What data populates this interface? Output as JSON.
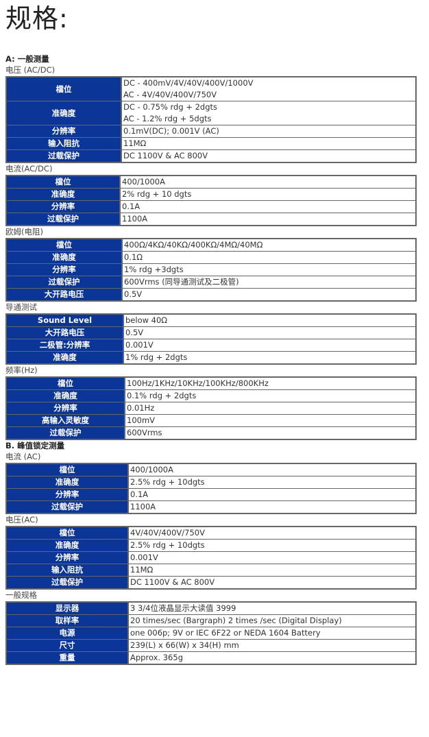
{
  "title": "规格:",
  "colors": {
    "label_bg": "#0b3597",
    "border": "#666666"
  },
  "sections": [
    {
      "group": "A: 一般测量",
      "sub": "电压 (AC/DC)",
      "rows": [
        {
          "k": "檔位",
          "v": [
            "DC - 400mV/4V/40V/400V/1000V",
            "AC - 4V/40V/400V/750V"
          ]
        },
        {
          "k": "准确度",
          "v": [
            "DC - 0.75% rdg + 2dgts",
            "AC - 1.2% rdg + 5dgts"
          ]
        },
        {
          "k": "分辨率",
          "v": [
            "0.1mV(DC); 0.001V (AC)"
          ]
        },
        {
          "k": "输入阻抗",
          "v": [
            "11MΩ"
          ]
        },
        {
          "k": "过载保护",
          "v": [
            "DC 1100V & AC 800V"
          ]
        }
      ]
    },
    {
      "sub": "电流(AC/DC)",
      "rows": [
        {
          "k": "檔位",
          "v": [
            "400/1000A"
          ]
        },
        {
          "k": "准确度",
          "v": [
            "2% rdg + 10 dgts"
          ]
        },
        {
          "k": "分辨率",
          "v": [
            "0.1A"
          ]
        },
        {
          "k": "过载保护",
          "v": [
            "1100A"
          ]
        }
      ]
    },
    {
      "sub": "欧姆(电阻)",
      "rows": [
        {
          "k": "檔位",
          "v": [
            "400Ω/4KΩ/40KΩ/400KΩ/4MΩ/40MΩ"
          ]
        },
        {
          "k": "准确度",
          "v": [
            "0.1Ω"
          ]
        },
        {
          "k": "分辨率",
          "v": [
            "1% rdg +3dgts"
          ]
        },
        {
          "k": "过载保护",
          "v": [
            "600Vrms (同导通测试及二极管)"
          ]
        },
        {
          "k": "大开路电压",
          "v": [
            "0.5V"
          ]
        }
      ]
    },
    {
      "sub": "导通测试",
      "rows": [
        {
          "k": "Sound Level",
          "v": [
            "below 40Ω"
          ]
        },
        {
          "k": "大开路电压",
          "v": [
            "0.5V"
          ]
        },
        {
          "k": "二极管:分辨率",
          "v": [
            "0.001V"
          ]
        },
        {
          "k": "准确度",
          "v": [
            "1% rdg + 2dgts"
          ]
        }
      ]
    },
    {
      "sub": "频率(Hz)",
      "rows": [
        {
          "k": "檔位",
          "v": [
            "100Hz/1KHz/10KHz/100KHz/800KHz"
          ]
        },
        {
          "k": "准确度",
          "v": [
            "0.1% rdg + 2dgts"
          ]
        },
        {
          "k": "分辨率",
          "v": [
            "0.01Hz"
          ]
        },
        {
          "k": "高输入灵敏度",
          "v": [
            "100mV"
          ]
        },
        {
          "k": "过载保护",
          "v": [
            "600Vrms"
          ]
        }
      ]
    },
    {
      "group": "B. 峰值锁定测量",
      "sub": "电流 (AC)",
      "rows": [
        {
          "k": "檔位",
          "v": [
            "400/1000A"
          ]
        },
        {
          "k": "准确度",
          "v": [
            "2.5% rdg + 10dgts"
          ]
        },
        {
          "k": "分辨率",
          "v": [
            "0.1A"
          ]
        },
        {
          "k": "过载保护",
          "v": [
            "1100A"
          ]
        }
      ]
    },
    {
      "sub": "电压(AC)",
      "rows": [
        {
          "k": "檔位",
          "v": [
            "4V/40V/400V/750V"
          ]
        },
        {
          "k": "准确度",
          "v": [
            "2.5% rdg + 10dgts"
          ]
        },
        {
          "k": "分辨率",
          "v": [
            "0.001V"
          ]
        },
        {
          "k": "输入阻抗",
          "v": [
            "11MΩ"
          ]
        },
        {
          "k": "过载保护",
          "v": [
            "DC 1100V & AC 800V"
          ]
        }
      ]
    },
    {
      "sub": "一般规格",
      "rows": [
        {
          "k": "显示器",
          "v": [
            "3 3/4位液晶显示大读值 3999"
          ]
        },
        {
          "k": "取样率",
          "v": [
            "20 times/sec (Bargraph) 2 times /sec (Digital Display)"
          ]
        },
        {
          "k": "电源",
          "v": [
            "one 006p; 9V or IEC 6F22 or NEDA 1604 Battery"
          ]
        },
        {
          "k": "尺寸",
          "v": [
            "239(L) x 66(W) x 34(H) mm"
          ]
        },
        {
          "k": "重量",
          "v": [
            "Approx. 365g"
          ]
        }
      ]
    }
  ]
}
